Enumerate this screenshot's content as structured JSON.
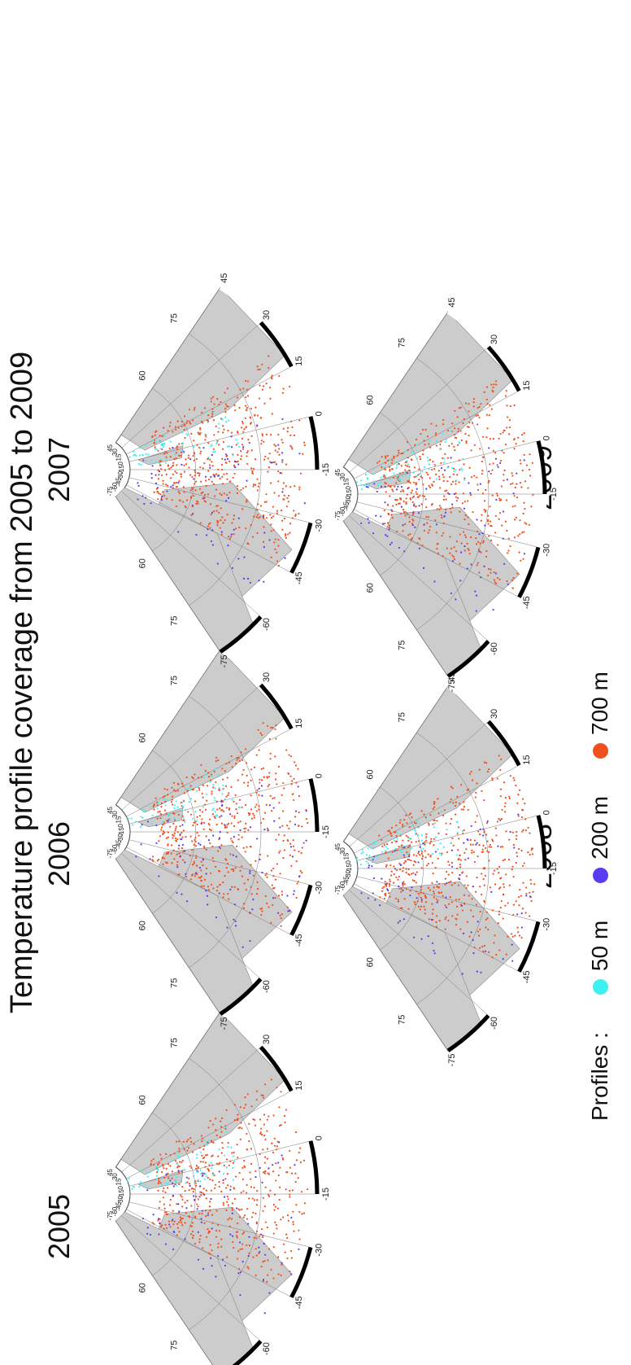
{
  "title": "Temperature profile coverage from 2005 to 2009",
  "colors": {
    "d50": "#3ff0f0",
    "d200": "#5a3cf0",
    "d700": "#f0501e",
    "land": "#cccccc",
    "coast": "#8a8a8a",
    "grid": "#777777"
  },
  "legend": {
    "label": "Profiles :",
    "items": [
      {
        "label": "50 m",
        "color": "#3ff0f0"
      },
      {
        "label": "200 m",
        "color": "#5a3cf0"
      },
      {
        "label": "700 m",
        "color": "#f0501e"
      }
    ]
  },
  "lon_labels": [
    "-75",
    "-60",
    "-45",
    "-30",
    "-15",
    "0",
    "15",
    "30",
    "45"
  ],
  "lon_labels_top": [
    "-75",
    "-60",
    "-45",
    "-30",
    "-15",
    "0",
    "15",
    "30",
    "45"
  ],
  "lat_labels": [
    "60",
    "75"
  ],
  "lat_labels_right": [
    "60",
    "75"
  ],
  "maps": [
    {
      "year": "2005"
    },
    {
      "year": "2006"
    },
    {
      "year": "2007"
    },
    {
      "year": "2008"
    },
    {
      "year": "2009"
    }
  ]
}
